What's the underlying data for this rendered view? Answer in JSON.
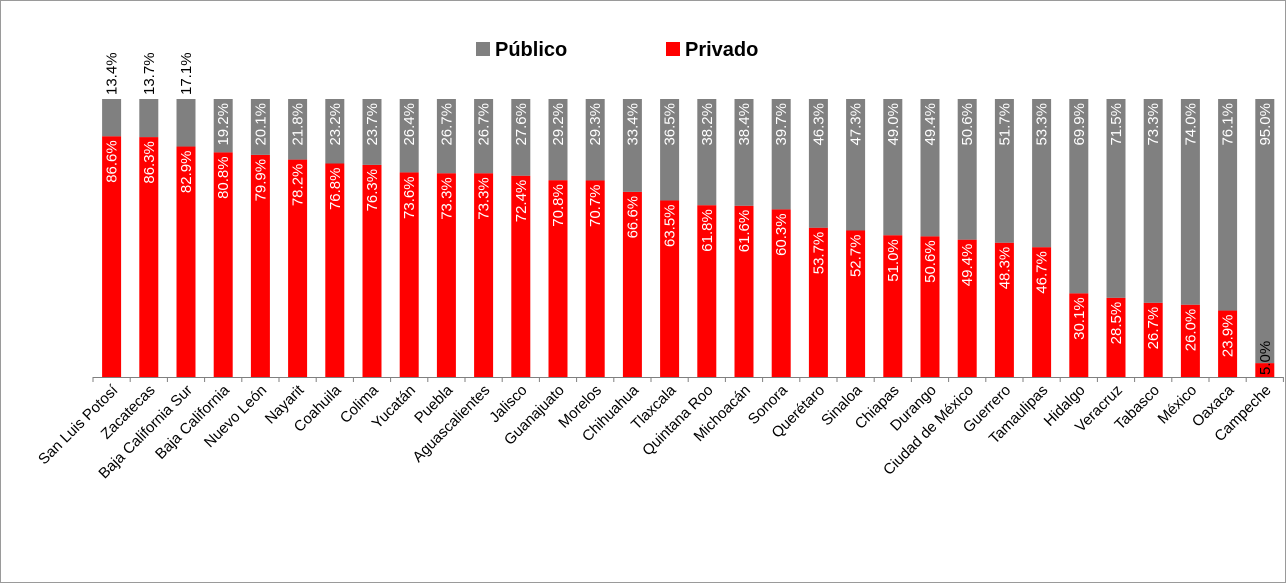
{
  "chart_data": {
    "type": "bar",
    "stacked": true,
    "percent_stacked": true,
    "title": "",
    "xlabel": "",
    "ylabel": "",
    "ylim": [
      0,
      100
    ],
    "grid": false,
    "legend_position": "top-center",
    "categories": [
      "San Luis Potosí",
      "Zacatecas",
      "Baja California Sur",
      "Baja California",
      "Nuevo León",
      "Nayarit",
      "Coahuila",
      "Colima",
      "Yucatán",
      "Puebla",
      "Aguascalientes",
      "Jalisco",
      "Guanajuato",
      "Morelos",
      "Chihuahua",
      "Tlaxcala",
      "Quintana Roo",
      "Michoacán",
      "Sonora",
      "Querétaro",
      "Sinaloa",
      "Chiapas",
      "Durango",
      "Ciudad de México",
      "Guerrero",
      "Tamaulipas",
      "Hidalgo",
      "Veracruz",
      "Tabasco",
      "México",
      "Oaxaca",
      "Campeche"
    ],
    "series": [
      {
        "name": "Privado",
        "color": "#ff0000",
        "values": [
          86.6,
          86.3,
          82.9,
          80.8,
          79.9,
          78.2,
          76.8,
          76.3,
          73.6,
          73.3,
          73.3,
          72.4,
          70.8,
          70.7,
          66.6,
          63.5,
          61.8,
          61.6,
          60.3,
          53.7,
          52.7,
          51.0,
          50.6,
          49.4,
          48.3,
          46.7,
          30.1,
          28.5,
          26.7,
          26.0,
          23.9,
          5.0
        ],
        "labels": [
          "86.6%",
          "86.3%",
          "82.9%",
          "80.8%",
          "79.9%",
          "78.2%",
          "76.8%",
          "76.3%",
          "73.6%",
          "73.3%",
          "73.3%",
          "72.4%",
          "70.8%",
          "70.7%",
          "66.6%",
          "63.5%",
          "61.8%",
          "61.6%",
          "60.3%",
          "53.7%",
          "52.7%",
          "51.0%",
          "50.6%",
          "49.4%",
          "48.3%",
          "46.7%",
          "30.1%",
          "28.5%",
          "26.7%",
          "26.0%",
          "23.9%",
          "5.0%"
        ]
      },
      {
        "name": "Público",
        "color": "#808080",
        "values": [
          13.4,
          13.7,
          17.1,
          19.2,
          20.1,
          21.8,
          23.2,
          23.7,
          26.4,
          26.7,
          26.7,
          27.6,
          29.2,
          29.3,
          33.4,
          36.5,
          38.2,
          38.4,
          39.7,
          46.3,
          47.3,
          49.0,
          49.4,
          50.6,
          51.7,
          53.3,
          69.9,
          71.5,
          73.3,
          74.0,
          76.1,
          95.0
        ],
        "labels": [
          "13.4%",
          "13.7%",
          "17.1%",
          "19.2%",
          "20.1%",
          "21.8%",
          "23.2%",
          "23.7%",
          "26.4%",
          "26.7%",
          "26.7%",
          "27.6%",
          "29.2%",
          "29.3%",
          "33.4%",
          "36.5%",
          "38.2%",
          "38.4%",
          "39.7%",
          "46.3%",
          "47.3%",
          "49.0%",
          "49.4%",
          "50.6%",
          "51.7%",
          "53.3%",
          "69.9%",
          "71.5%",
          "73.3%",
          "74.0%",
          "76.1%",
          "95.0%"
        ]
      }
    ],
    "legend": [
      {
        "name": "Público",
        "color": "#808080"
      },
      {
        "name": "Privado",
        "color": "#ff0000"
      }
    ]
  }
}
